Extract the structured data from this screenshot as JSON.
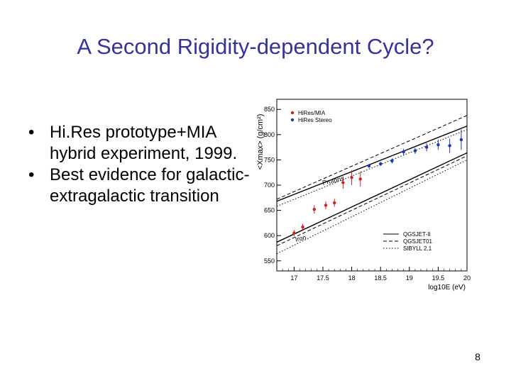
{
  "slide": {
    "title": "A Second Rigidity-dependent Cycle?",
    "page_number": "8"
  },
  "bullets": [
    "Hi.Res prototype+MIA hybrid experiment, 1999.",
    "Best evidence for galactic-extragalactic transition"
  ],
  "bullet_symbol": "•",
  "chart_data": {
    "type": "scatter",
    "ylabel": "<Xmax> (g/cm²)",
    "xlabel": "log10E (eV)",
    "xlim": [
      16.7,
      20.0
    ],
    "ylim": [
      530,
      870
    ],
    "x_ticks": [
      "17",
      "17.5",
      "18",
      "18.5",
      "19",
      "19.5",
      "20"
    ],
    "y_ticks": [
      "550",
      "600",
      "650",
      "700",
      "750",
      "800",
      "850"
    ],
    "legend_points": [
      "HiRes/MIA",
      "HiRes Stereo"
    ],
    "legend_lines": [
      "QGSJET-II",
      "QGSJET01",
      "SIBYLL 2.1"
    ],
    "annotations": [
      "Protons",
      "Iron"
    ],
    "colors": {
      "hires_mia": "#d42020",
      "hires_stereo": "#1f35b8",
      "axis": "#000000"
    },
    "series": [
      {
        "name": "HiRes/MIA",
        "x": [
          17.0,
          17.15,
          17.35,
          17.55,
          17.7,
          17.85,
          18.0,
          18.15
        ],
        "y": [
          605,
          617,
          652,
          660,
          665,
          705,
          715,
          712
        ],
        "err": [
          6,
          6,
          8,
          8,
          8,
          12,
          15,
          15
        ]
      },
      {
        "name": "HiRes Stereo",
        "x": [
          18.3,
          18.5,
          18.7,
          18.9,
          19.1,
          19.3,
          19.5,
          19.7,
          19.9
        ],
        "y": [
          738,
          742,
          748,
          766,
          768,
          775,
          780,
          778,
          790
        ],
        "err": [
          4,
          4,
          5,
          6,
          6,
          8,
          10,
          14,
          20
        ]
      }
    ],
    "model_lines": [
      {
        "group": "protons",
        "style": "solid",
        "x": [
          16.7,
          20.0
        ],
        "y": [
          668,
          817
        ]
      },
      {
        "group": "protons",
        "style": "dashed",
        "x": [
          16.7,
          20.0
        ],
        "y": [
          672,
          838
        ]
      },
      {
        "group": "protons",
        "style": "dotted",
        "x": [
          16.7,
          20.0
        ],
        "y": [
          658,
          810
        ]
      },
      {
        "group": "iron",
        "style": "solid",
        "x": [
          16.7,
          20.0
        ],
        "y": [
          587,
          764
        ]
      },
      {
        "group": "iron",
        "style": "dashed",
        "x": [
          16.7,
          20.0
        ],
        "y": [
          580,
          758
        ]
      },
      {
        "group": "iron",
        "style": "dotted",
        "x": [
          16.7,
          20.0
        ],
        "y": [
          564,
          750
        ]
      }
    ]
  }
}
